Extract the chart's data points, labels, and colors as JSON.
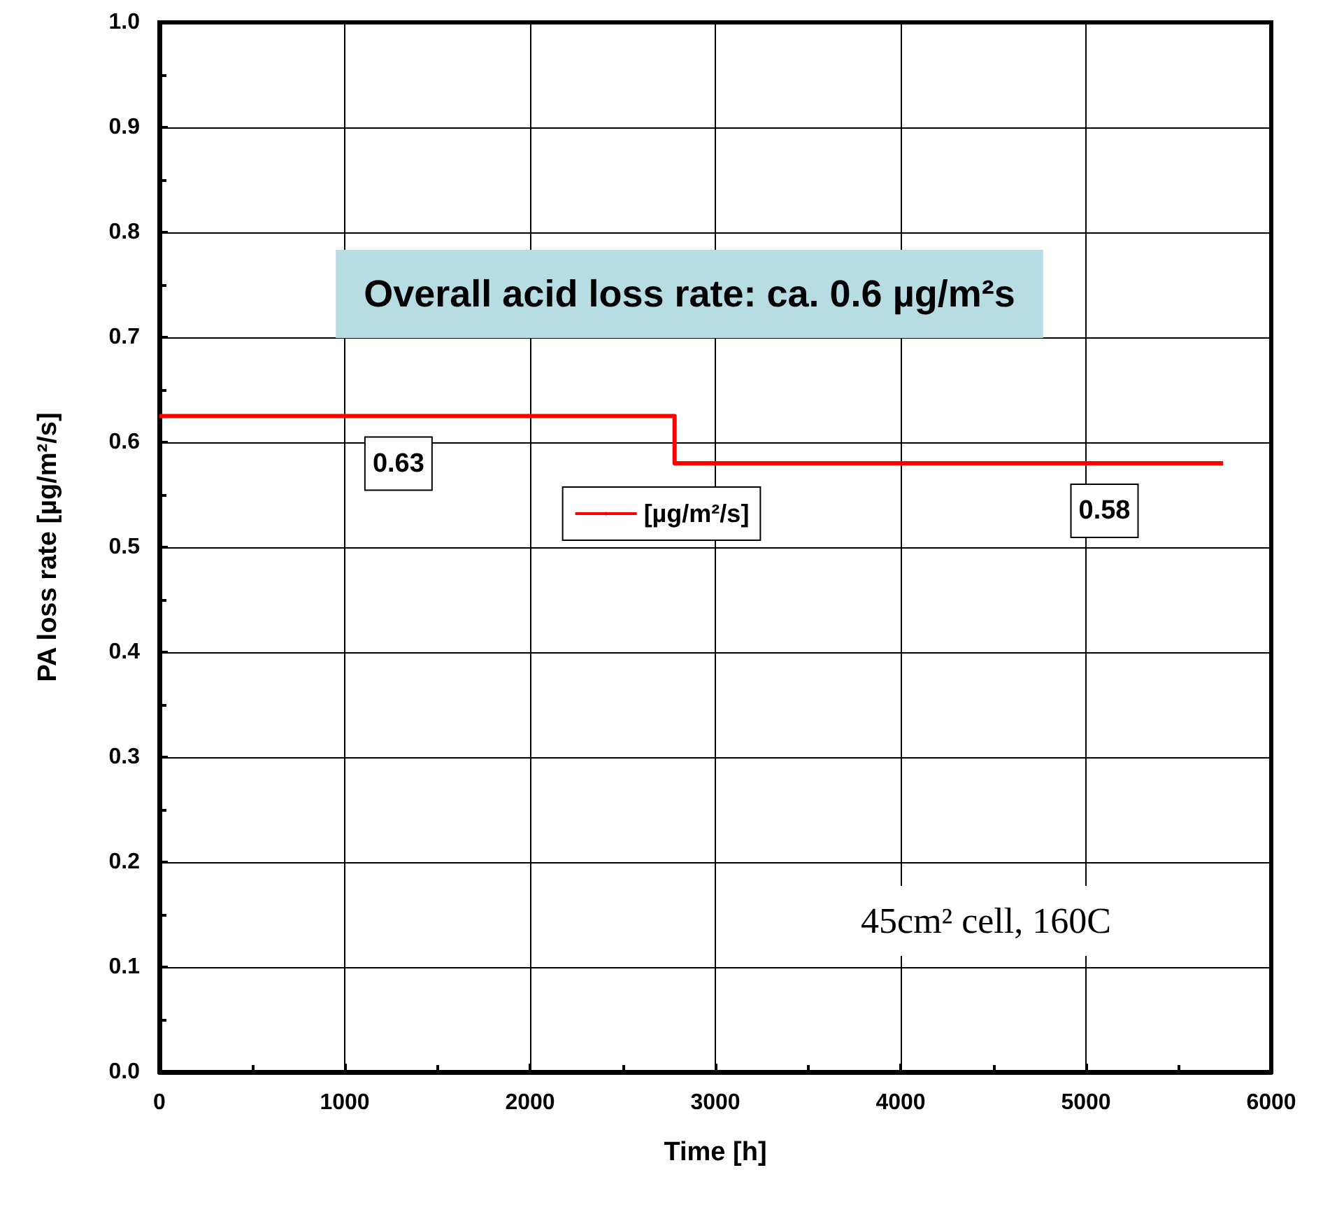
{
  "chart_data": {
    "type": "step",
    "xlabel": "Time [h]",
    "ylabel": "PA loss rate [µg/m²/s]",
    "x": [
      0,
      2780,
      5740
    ],
    "series": [
      {
        "name": "[µg/m²/s]",
        "color": "#ff0000",
        "values": [
          0.625,
          0.58,
          0.58
        ]
      }
    ],
    "xlim": [
      0,
      6000
    ],
    "xticks": [
      0,
      1000,
      2000,
      3000,
      4000,
      5000,
      6000
    ],
    "ylim": [
      0,
      1
    ],
    "yticks": [
      {
        "value": 0,
        "label": "0.0"
      },
      {
        "value": 0.1,
        "label": "0.1"
      },
      {
        "value": 0.2,
        "label": "0.2"
      },
      {
        "value": 0.3,
        "label": "0.3"
      },
      {
        "value": 0.4,
        "label": "0.4"
      },
      {
        "value": 0.5,
        "label": "0.5"
      },
      {
        "value": 0.6,
        "label": "0.6"
      },
      {
        "value": 0.7,
        "label": "0.7"
      },
      {
        "value": 0.8,
        "label": "0.8"
      },
      {
        "value": 0.9,
        "label": "0.9"
      },
      {
        "value": 1,
        "label": "1.0"
      }
    ],
    "grid": true,
    "legend": "center",
    "marker": "none",
    "line_style": "solid",
    "annotations": [
      "Overall acid loss rate: ca. 0.6 µg/m²s",
      {
        "text": "0.63",
        "x": 1290,
        "y": 0.625
      },
      {
        "text": "0.58",
        "x": 5100,
        "y": 0.58
      },
      "45cm² cell, 160C"
    ]
  }
}
